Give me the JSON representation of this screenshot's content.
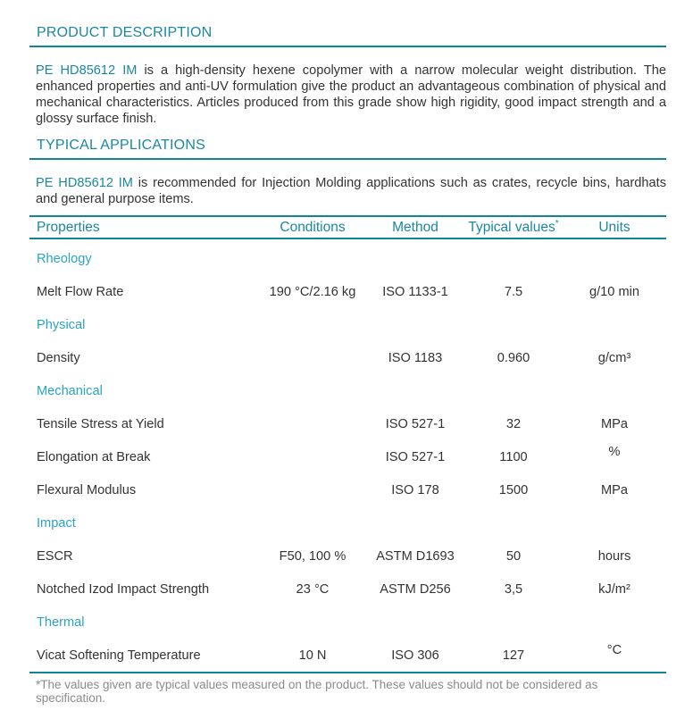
{
  "colors": {
    "accent_teal": "#1B87A2",
    "rule_teal": "#0F8695",
    "section_cyan": "#2BA3C2",
    "body_text": "#333333",
    "footnote_gray": "#8B8B8B"
  },
  "product_description": {
    "heading": "PRODUCT DESCRIPTION",
    "product_name": "PE HD85612 IM",
    "text": " is a high-density hexene copolymer with a narrow molecular weight distribution. The enhanced properties and anti-UV formulation give the product an advantageous combination of physical and mechanical characteristics. Articles produced from this grade show high rigidity, good impact strength and a glossy surface finish."
  },
  "typical_applications": {
    "heading": "TYPICAL APPLICATIONS",
    "product_name": "PE HD85612 IM",
    "text": " is recommended for Injection Molding applications such as crates, recycle bins, hardhats and general purpose items."
  },
  "table": {
    "header": {
      "properties": "Properties",
      "conditions": "Conditions",
      "method": "Method",
      "typical_values": "Typical values",
      "typical_values_sup": "*",
      "units": "Units"
    },
    "sections": [
      {
        "name": "Rheology",
        "rows": [
          {
            "property": "Melt Flow Rate",
            "conditions": "190 °C/2.16 kg",
            "method": "ISO 1133-1",
            "value": "7.5",
            "unit": "g/10 min"
          }
        ]
      },
      {
        "name": "Physical",
        "rows": [
          {
            "property": "Density",
            "conditions": "",
            "method": "ISO 1183",
            "value": "0.960",
            "unit": "g/cm³"
          }
        ]
      },
      {
        "name": "Mechanical",
        "rows": [
          {
            "property": "Tensile Stress at Yield",
            "conditions": "",
            "method": "ISO 527-1",
            "value": "32",
            "unit": "MPa"
          },
          {
            "property": "Elongation at Break",
            "conditions": "",
            "method": "ISO 527-1",
            "value": "1100",
            "unit": "%"
          },
          {
            "property": "Flexural Modulus",
            "conditions": "",
            "method": "ISO 178",
            "value": "1500",
            "unit": "MPa"
          }
        ]
      },
      {
        "name": "Impact",
        "rows": [
          {
            "property": "ESCR",
            "conditions": "F50, 100 %",
            "method": "ASTM D1693",
            "value": "50",
            "unit": "hours"
          },
          {
            "property": "Notched Izod Impact Strength",
            "conditions": "23 °C",
            "method": "ASTM D256",
            "value": "3,5",
            "unit": "kJ/m²"
          }
        ]
      },
      {
        "name": "Thermal",
        "rows": [
          {
            "property": "Vicat Softening Temperature",
            "conditions": "10 N",
            "method": "ISO 306",
            "value": "127",
            "unit": "°C"
          }
        ]
      }
    ]
  },
  "footnote": "*The values given are typical values measured on the product. These values should not be considered as specification."
}
